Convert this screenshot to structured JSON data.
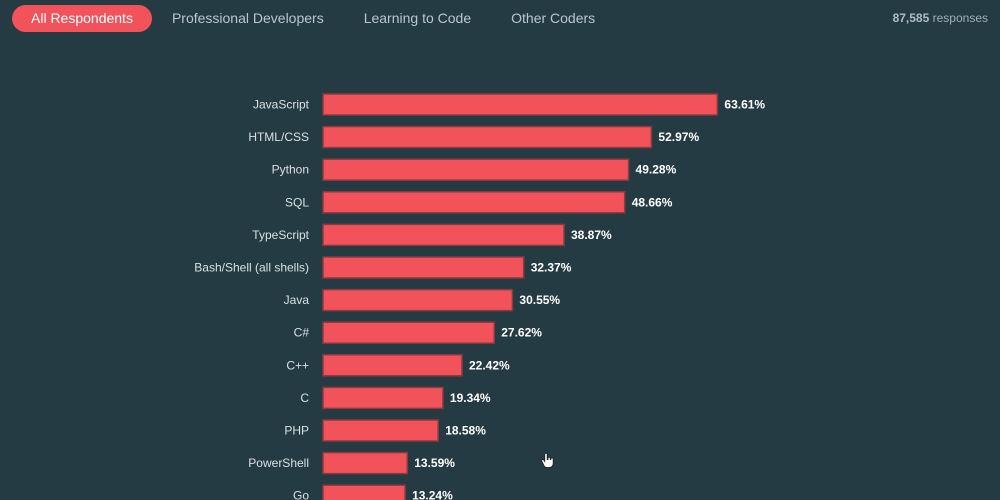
{
  "tabs": [
    {
      "label": "All Respondents",
      "active": true
    },
    {
      "label": "Professional Developers",
      "active": false
    },
    {
      "label": "Learning to Code",
      "active": false
    },
    {
      "label": "Other Coders",
      "active": false
    }
  ],
  "responses": {
    "count": "87,585",
    "label": "responses"
  },
  "colors": {
    "background": "#253b44",
    "bar": "#f2525a",
    "bar_outline": "#8a3b40",
    "label": "#d7e0e3",
    "value_label": "#ffffff",
    "active_tab": "#f2525a"
  },
  "icons": {
    "cursor": "hand-pointer-icon"
  },
  "chart_data": {
    "type": "bar",
    "orientation": "horizontal",
    "categories": [
      "JavaScript",
      "HTML/CSS",
      "Python",
      "SQL",
      "TypeScript",
      "Bash/Shell (all shells)",
      "Java",
      "C#",
      "C++",
      "C",
      "PHP",
      "PowerShell",
      "Go"
    ],
    "values": [
      63.61,
      52.97,
      49.28,
      48.66,
      38.87,
      32.37,
      30.55,
      27.62,
      22.42,
      19.34,
      18.58,
      13.59,
      13.24
    ],
    "value_labels": [
      "63.61%",
      "52.97%",
      "49.28%",
      "48.66%",
      "38.87%",
      "32.37%",
      "30.55%",
      "27.62%",
      "22.42%",
      "19.34%",
      "18.58%",
      "13.59%",
      "13.24%"
    ],
    "unit": "%",
    "xlim": [
      0,
      100
    ],
    "title": "",
    "xlabel": "",
    "ylabel": "",
    "grid": false
  }
}
